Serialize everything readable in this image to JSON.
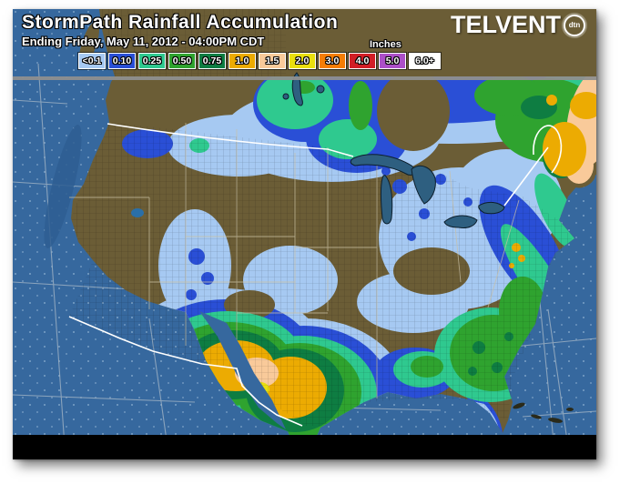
{
  "header": {
    "title": "StormPath Rainfall Accumulation",
    "subtitle": "Ending Friday, May 11, 2012 - 04:00PM CDT",
    "units_label": "Inches"
  },
  "logo": {
    "brand": "TELVENT",
    "badge": "dtn"
  },
  "legend": {
    "items": [
      {
        "label": "<0.1",
        "color": "#A6C9F2"
      },
      {
        "label": "0.10",
        "color": "#2A4FD6"
      },
      {
        "label": "0.25",
        "color": "#2FC98F"
      },
      {
        "label": "0.50",
        "color": "#2FA32F"
      },
      {
        "label": "0.75",
        "color": "#0E7D42"
      },
      {
        "label": "1.0",
        "color": "#ECAB02"
      },
      {
        "label": "1.5",
        "color": "#F9CA9A"
      },
      {
        "label": "2.0",
        "color": "#EADF0E"
      },
      {
        "label": "3.0",
        "color": "#F57D05"
      },
      {
        "label": "4.0",
        "color": "#D21E26"
      },
      {
        "label": "5.0",
        "color": "#AC4FC8"
      },
      {
        "label": "6.0+",
        "color": "#FFFFFF",
        "wide": true
      }
    ]
  },
  "map": {
    "colors": {
      "ocean": "#36689E",
      "coastdeep": "#2E5E92",
      "land": "#6B5D36",
      "lakes": "#2E5F80",
      "grid": "#9FB2C4",
      "stateline": "#C9C0A4",
      "border": "#FFFFFF",
      "divider": "#8F8F8F",
      "bottombar": "#000000",
      "rain_lt01": "#A6C9F2",
      "rain_010": "#2A4FD6",
      "rain_025": "#2FC98F",
      "rain_050": "#2FA32F",
      "rain_075": "#0E7D42",
      "rain_10": "#ECAB02",
      "rain_15": "#F9CA9A",
      "rain_20": "#EADF0E"
    }
  }
}
